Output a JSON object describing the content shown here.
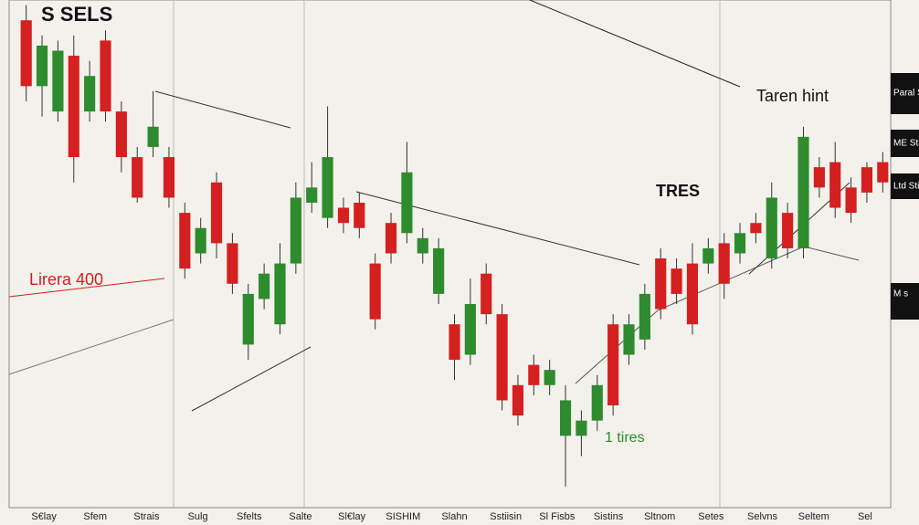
{
  "chart_data": {
    "type": "candlestick",
    "title": "S SELS",
    "annotations": [
      "TRES",
      "Taren hint",
      "1 tires",
      "Lirera 400"
    ],
    "side_labels": [
      "Paral Sti",
      "ME Sti",
      "Ltd Sti",
      "M s"
    ],
    "x_labels": [
      "S€lay",
      "Sfem",
      "Strais",
      "Sulg",
      "Sfelts",
      "Salte",
      "Sl€lay",
      "SISHIM",
      "Slahn",
      "Sstiisin",
      "Sl Fisbs",
      "Sistins",
      "Sltnom",
      "Setes",
      "Selvns",
      "Seltem",
      "Sel"
    ],
    "open": [
      96,
      83,
      78,
      89,
      78,
      92,
      78,
      69,
      71,
      69,
      58,
      50,
      64,
      52,
      32,
      41,
      36,
      48,
      60,
      57,
      59,
      60,
      48,
      56,
      54,
      50,
      42,
      36,
      30,
      46,
      38,
      24,
      28,
      24,
      14,
      14,
      17,
      36,
      30,
      33,
      49,
      47,
      48,
      48,
      52,
      50,
      56,
      49,
      58,
      51,
      67,
      68,
      63,
      67,
      68
    ],
    "high": [
      99,
      93,
      92,
      93,
      88,
      94,
      80,
      71,
      82,
      71,
      60,
      57,
      66,
      54,
      44,
      48,
      52,
      64,
      68,
      79,
      61,
      62,
      50,
      58,
      72,
      55,
      53,
      38,
      45,
      48,
      40,
      26,
      30,
      29,
      24,
      19,
      26,
      38,
      38,
      44,
      51,
      49,
      52,
      53,
      54,
      56,
      58,
      64,
      60,
      75,
      69,
      72,
      65,
      68,
      70
    ],
    "low": [
      80,
      77,
      76,
      64,
      76,
      76,
      66,
      60,
      69,
      59,
      45,
      48,
      49,
      42,
      29,
      39,
      34,
      46,
      58,
      55,
      54,
      53,
      35,
      48,
      52,
      48,
      40,
      25,
      28,
      36,
      19,
      16,
      22,
      22,
      4,
      10,
      15,
      18,
      28,
      31,
      37,
      40,
      34,
      46,
      41,
      48,
      52,
      47,
      49,
      49,
      61,
      57,
      56,
      60,
      62
    ],
    "close": [
      83,
      91,
      90,
      69,
      85,
      78,
      69,
      61,
      75,
      61,
      47,
      55,
      52,
      44,
      42,
      46,
      48,
      61,
      63,
      69,
      56,
      55,
      37,
      50,
      66,
      53,
      51,
      29,
      40,
      38,
      21,
      18,
      24,
      27,
      21,
      17,
      24,
      20,
      36,
      42,
      39,
      42,
      36,
      51,
      44,
      54,
      54,
      61,
      51,
      73,
      63,
      59,
      58,
      62,
      64
    ],
    "up_color": "#2e8b2e",
    "down_color": "#d42020",
    "ylim": [
      0,
      100
    ]
  }
}
